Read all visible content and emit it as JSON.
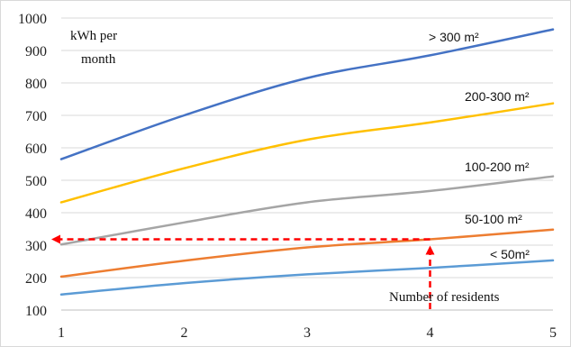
{
  "chart_data": {
    "type": "line",
    "x": [
      1,
      2,
      3,
      4,
      5
    ],
    "xlim": [
      1,
      5
    ],
    "ylim": [
      100,
      1000
    ],
    "yticks": [
      100,
      200,
      300,
      400,
      500,
      600,
      700,
      800,
      900,
      1000
    ],
    "xticks": [
      1,
      2,
      3,
      4,
      5
    ],
    "grid": "horizontal",
    "ylabel_lines": [
      "kWh per",
      "month"
    ],
    "xlabel": "Number of residents",
    "series": [
      {
        "name": "> 300 m²",
        "color": "#4472C4",
        "values": [
          565,
          700,
          815,
          885,
          965
        ]
      },
      {
        "name": "200-300  m²",
        "color": "#FFC000",
        "values": [
          432,
          537,
          625,
          678,
          737
        ]
      },
      {
        "name": "100-200  m²",
        "color": "#A5A5A5",
        "values": [
          302,
          370,
          432,
          467,
          512
        ]
      },
      {
        "name": "50-100  m²",
        "color": "#ED7D31",
        "values": [
          203,
          252,
          293,
          318,
          348
        ]
      },
      {
        "name": "< 50m²",
        "color": "#5B9BD5",
        "values": [
          148,
          183,
          210,
          230,
          253
        ]
      }
    ],
    "annotation": {
      "style": "dashed-arrow",
      "color": "#FF0000",
      "from_x": 4,
      "to_y": 318
    }
  }
}
